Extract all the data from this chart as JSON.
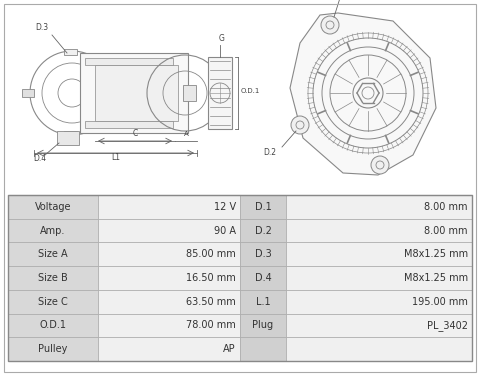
{
  "bg_color": "#ffffff",
  "table_header_bg": "#d8d8d8",
  "table_value_bg": "#f0f0f0",
  "table_border": "#aaaaaa",
  "diagram_color": "#888888",
  "dim_color": "#666666",
  "left_table": [
    [
      "Voltage",
      "12 V"
    ],
    [
      "Amp.",
      "90 A"
    ],
    [
      "Size A",
      "85.00 mm"
    ],
    [
      "Size B",
      "16.50 mm"
    ],
    [
      "Size C",
      "63.50 mm"
    ],
    [
      "O.D.1",
      "78.00 mm"
    ],
    [
      "Pulley",
      "AP"
    ]
  ],
  "right_table": [
    [
      "D.1",
      "8.00 mm"
    ],
    [
      "D.2",
      "8.00 mm"
    ],
    [
      "D.3",
      "M8x1.25 mm"
    ],
    [
      "D.4",
      "M8x1.25 mm"
    ],
    [
      "L.1",
      "195.00 mm"
    ],
    [
      "Plug",
      "PL_3402"
    ],
    [
      "",
      ""
    ]
  ],
  "table_font_size": 7.0
}
